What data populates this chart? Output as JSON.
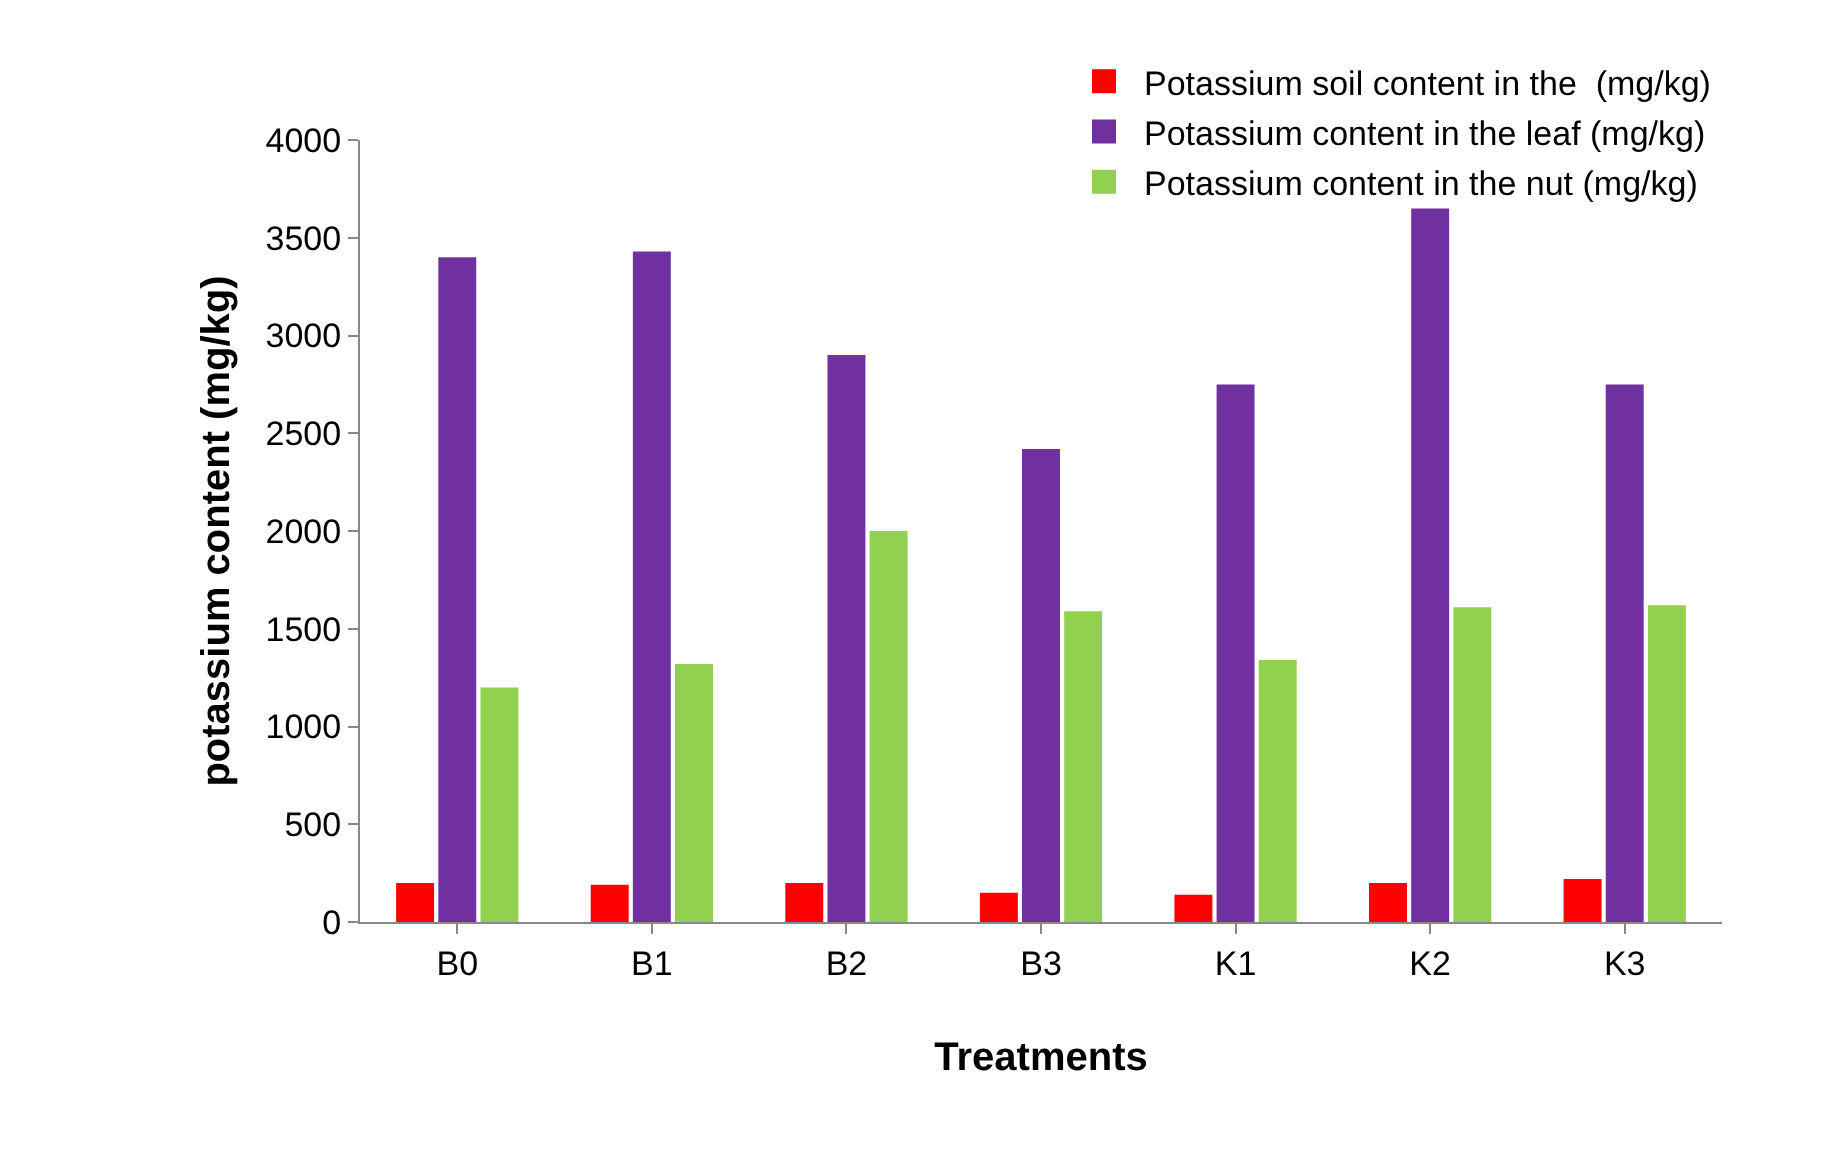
{
  "chart_data": {
    "type": "bar",
    "xlabel": "Treatments",
    "ylabel": "potassium content (mg/kg)",
    "categories": [
      "B0",
      "B1",
      "B2",
      "B3",
      "K1",
      "K2",
      "K3"
    ],
    "series": [
      {
        "name": "Potassium soil content in the  (mg/kg)",
        "color": "#ff0000",
        "values": [
          200,
          190,
          200,
          150,
          140,
          200,
          220
        ]
      },
      {
        "name": "Potassium content in the leaf (mg/kg)",
        "color": "#7030a0",
        "values": [
          3400,
          3430,
          2900,
          2420,
          2750,
          3650,
          2750
        ]
      },
      {
        "name": "Potassium content in the nut (mg/kg)",
        "color": "#92d050",
        "values": [
          1200,
          1320,
          2000,
          1590,
          1340,
          1610,
          1620
        ]
      }
    ],
    "ylim": [
      0,
      4000
    ],
    "yticks": [
      0,
      500,
      1000,
      1500,
      2000,
      2500,
      3000,
      3500,
      4000
    ],
    "grid": false,
    "legend": "top right"
  }
}
